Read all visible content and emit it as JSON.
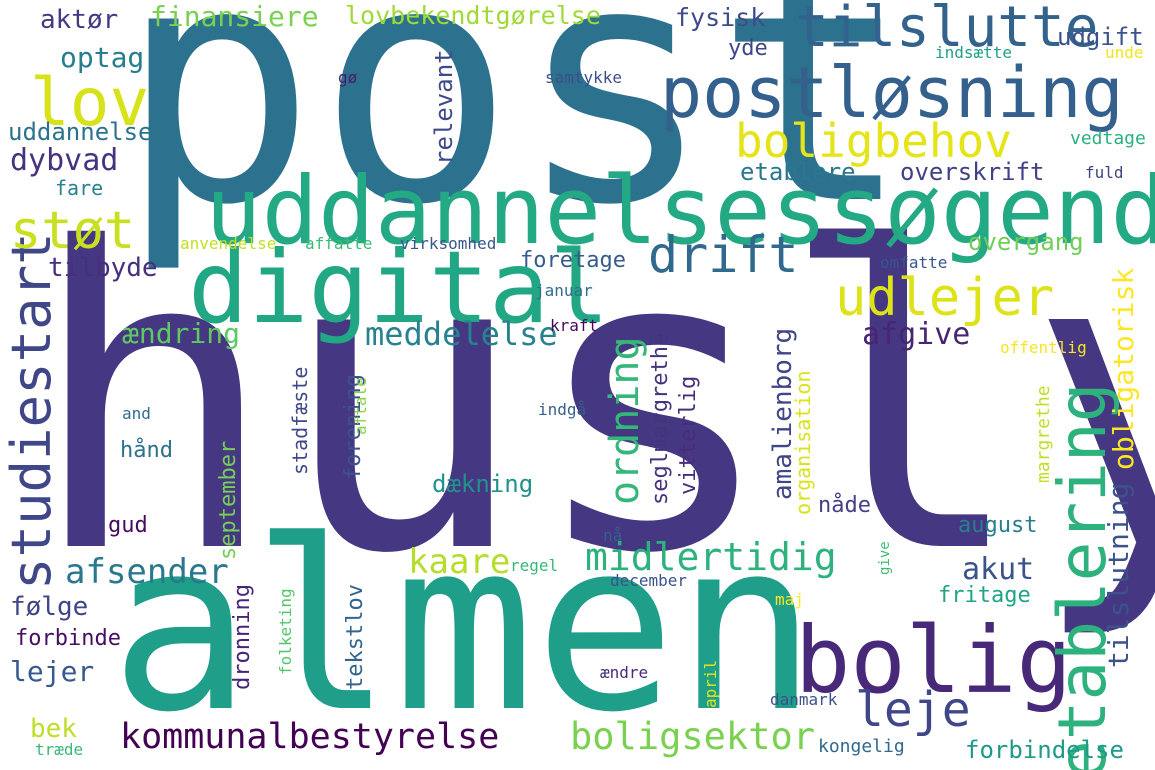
{
  "words": [
    {
      "text": "husly",
      "color": "#453781"
    },
    {
      "text": "post",
      "color": "#2c728e"
    },
    {
      "text": "almen",
      "color": "#1f9e89"
    },
    {
      "text": "uddannelsessøgende",
      "color": "#23a983"
    },
    {
      "text": "digital",
      "color": "#22a784"
    },
    {
      "text": "postløsning",
      "color": "#34608d"
    },
    {
      "text": "bolig",
      "color": "#482878"
    },
    {
      "text": "tilslutte",
      "color": "#33638d"
    },
    {
      "text": "etablering",
      "color": "#2db27d"
    },
    {
      "text": "studiestart",
      "color": "#3f4788"
    },
    {
      "text": "lov",
      "color": "#d8e219"
    },
    {
      "text": "støt",
      "color": "#c8e020"
    },
    {
      "text": "udlejer",
      "color": "#dde318"
    },
    {
      "text": "boligbehov",
      "color": "#e5e419"
    },
    {
      "text": "drift",
      "color": "#31688e"
    },
    {
      "text": "leje",
      "color": "#3f4788"
    },
    {
      "text": "ordning",
      "color": "#35b779"
    },
    {
      "text": "midlertidig",
      "color": "#2db27d"
    },
    {
      "text": "kommunalbestyrelse",
      "color": "#440154"
    },
    {
      "text": "boligsektor",
      "color": "#7ad151"
    },
    {
      "text": "meddelelse",
      "color": "#26828e"
    },
    {
      "text": "afsender",
      "color": "#2a788e"
    },
    {
      "text": "kaare",
      "color": "#b5de2b"
    },
    {
      "text": "tilslutning",
      "color": "#3b528b"
    },
    {
      "text": "obligatorisk",
      "color": "#fde725"
    },
    {
      "text": "amalienborg",
      "color": "#414487"
    },
    {
      "text": "akut",
      "color": "#3b528b"
    },
    {
      "text": "afgive",
      "color": "#482475"
    },
    {
      "text": "finansiere",
      "color": "#7ad151"
    },
    {
      "text": "lovbekendtgørelse",
      "color": "#a0da39"
    },
    {
      "text": "aktør",
      "color": "#443983"
    },
    {
      "text": "optag",
      "color": "#287d8e"
    },
    {
      "text": "dybvad",
      "color": "#46327e"
    },
    {
      "text": "uddannelse",
      "color": "#2c728e"
    },
    {
      "text": "relevant",
      "color": "#3e4989"
    },
    {
      "text": "fysisk",
      "color": "#3e4c8a"
    },
    {
      "text": "udgift",
      "color": "#3b528b"
    },
    {
      "text": "yde",
      "color": "#404688"
    },
    {
      "text": "samtykke",
      "color": "#3d4e8a"
    },
    {
      "text": "gø",
      "color": "#481c6e"
    },
    {
      "text": "indsætte",
      "color": "#1fa188"
    },
    {
      "text": "unde",
      "color": "#f1e51d"
    },
    {
      "text": "vedtage",
      "color": "#2ab07f"
    },
    {
      "text": "fuld",
      "color": "#414487"
    },
    {
      "text": "etablere",
      "color": "#2a788e"
    },
    {
      "text": "overskrift",
      "color": "#424086"
    },
    {
      "text": "overgang",
      "color": "#6ece58"
    },
    {
      "text": "fare",
      "color": "#26828e"
    },
    {
      "text": "tilbyde",
      "color": "#472f7d"
    },
    {
      "text": "foretage",
      "color": "#365c8d"
    },
    {
      "text": "anvendelse",
      "color": "#c2df23"
    },
    {
      "text": "affatte",
      "color": "#3bbb75"
    },
    {
      "text": "virksomhed",
      "color": "#39568c"
    },
    {
      "text": "omfatte",
      "color": "#3a548c"
    },
    {
      "text": "januar",
      "color": "#2e6f8e"
    },
    {
      "text": "kraft",
      "color": "#46085c"
    },
    {
      "text": "offentlig",
      "color": "#f6e620"
    },
    {
      "text": "ændring",
      "color": "#5ec962"
    },
    {
      "text": "seglmargrethe",
      "color": "#45337d"
    },
    {
      "text": "forening",
      "color": "#3b528b"
    },
    {
      "text": "stadfæste",
      "color": "#3f4889"
    },
    {
      "text": "vitterlig",
      "color": "#472c7a"
    },
    {
      "text": "organisation",
      "color": "#dae319"
    },
    {
      "text": "margrethe",
      "color": "#c0df25"
    },
    {
      "text": "and",
      "color": "#2f6c8e"
    },
    {
      "text": "aftale",
      "color": "#87d549"
    },
    {
      "text": "indgå",
      "color": "#355f8d"
    },
    {
      "text": "hånd",
      "color": "#2d718e"
    },
    {
      "text": "dækning",
      "color": "#20928c"
    },
    {
      "text": "nåde",
      "color": "#424186"
    },
    {
      "text": "august",
      "color": "#277f8e"
    },
    {
      "text": "gud",
      "color": "#460b5e"
    },
    {
      "text": "september",
      "color": "#75d054"
    },
    {
      "text": "nå",
      "color": "#34618d"
    },
    {
      "text": "give",
      "color": "#3fbc73"
    },
    {
      "text": "regel",
      "color": "#37b878"
    },
    {
      "text": "december",
      "color": "#3a538b"
    },
    {
      "text": "fritage",
      "color": "#20a486"
    },
    {
      "text": "følge",
      "color": "#404588"
    },
    {
      "text": "forbinde",
      "color": "#470e61"
    },
    {
      "text": "dronning",
      "color": "#482475"
    },
    {
      "text": "folketing",
      "color": "#52c569"
    },
    {
      "text": "tekstlov",
      "color": "#32658e"
    },
    {
      "text": "maj",
      "color": "#fde725"
    },
    {
      "text": "lejer",
      "color": "#375a8c"
    },
    {
      "text": "april",
      "color": "#e2e418"
    },
    {
      "text": "ændre",
      "color": "#472c7a"
    },
    {
      "text": "danmark",
      "color": "#3c508b"
    },
    {
      "text": "bek",
      "color": "#bddf26"
    },
    {
      "text": "forbindelse",
      "color": "#1f998a"
    },
    {
      "text": "kongelig",
      "color": "#31688e"
    },
    {
      "text": "træde",
      "color": "#38b977"
    }
  ]
}
